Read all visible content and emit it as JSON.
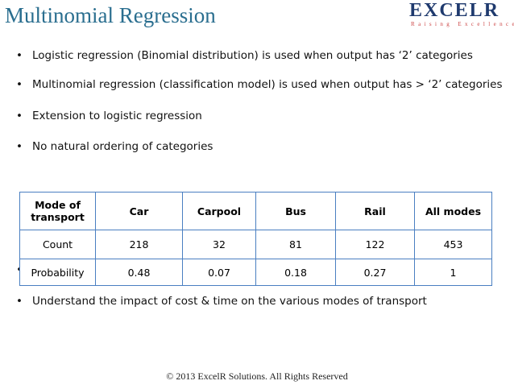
{
  "header": {
    "title": "Multinomial Regression",
    "logo": "EXCELR",
    "logo_tagline": "Raising Excellence"
  },
  "bullets": [
    "Logistic regression (Binomial distribution) is used when output has ‘2’ categories",
    "Multinomial regression (classification model) is used when output has > ‘2’ categories",
    "Extension to logistic regression",
    "No natural ordering of categories"
  ],
  "table": {
    "header": [
      "Mode of transport",
      "Car",
      "Carpool",
      "Bus",
      "Rail",
      "All modes"
    ],
    "rows": [
      [
        "Count",
        "218",
        "32",
        "81",
        "122",
        "453"
      ],
      [
        "Probability",
        "0.48",
        "0.07",
        "0.18",
        "0.27",
        "1"
      ]
    ]
  },
  "bullets_after": [
    "Understand the impact of cost & time on the various modes of transport"
  ],
  "footer": "© 2013 ExcelR Solutions. All Rights Reserved"
}
